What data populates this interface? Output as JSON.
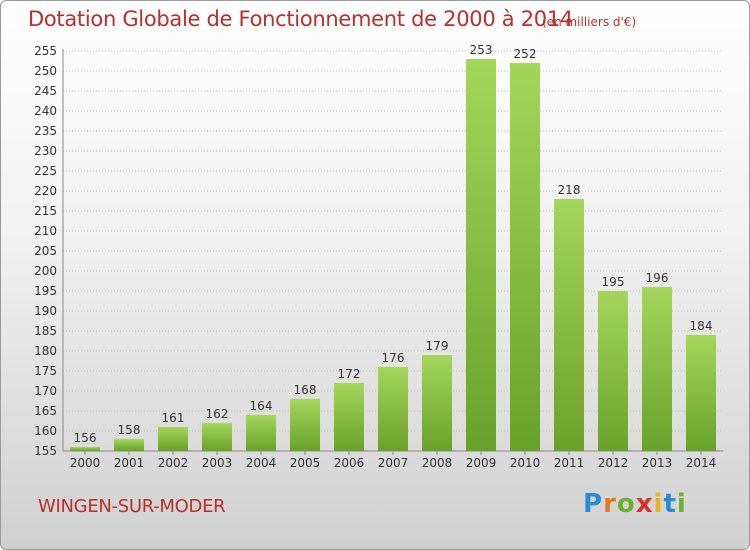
{
  "header": {
    "title": "Dotation Globale de Fonctionnement de 2000 à 2014",
    "unit": "(en milliers d'€)"
  },
  "footer": {
    "commune": "WINGEN-SUR-MODER",
    "logo": {
      "letters": [
        "P",
        "r",
        "o",
        "x",
        "i",
        "t",
        "i"
      ],
      "colors": [
        "#2a8ad4",
        "#e07a1c",
        "#6bb12f",
        "#d8302c",
        "#e8b51c",
        "#2a8ad4",
        "#6bb12f"
      ]
    }
  },
  "colors": {
    "bar_light": "#a4d65a",
    "bar_dark": "#6aa12a",
    "title": "#b8302c",
    "grid": "#bfbfbf"
  },
  "chart_data": {
    "type": "bar",
    "categories": [
      "2000",
      "2001",
      "2002",
      "2003",
      "2004",
      "2005",
      "2006",
      "2007",
      "2008",
      "2009",
      "2010",
      "2011",
      "2012",
      "2013",
      "2014"
    ],
    "values": [
      156,
      158,
      161,
      162,
      164,
      168,
      172,
      176,
      179,
      253,
      252,
      218,
      195,
      196,
      184
    ],
    "data_labels": [
      "156",
      "158",
      "161",
      "162",
      "164",
      "168",
      "172",
      "176",
      "179",
      "253",
      "252",
      "218",
      "195",
      "196",
      "184"
    ],
    "title": "Dotation Globale de Fonctionnement de 2000 à 2014",
    "ylim": [
      155,
      255
    ],
    "yticks": [
      155,
      160,
      165,
      170,
      175,
      180,
      185,
      190,
      195,
      200,
      205,
      210,
      215,
      220,
      225,
      230,
      235,
      240,
      245,
      250,
      255
    ],
    "grid": true
  }
}
